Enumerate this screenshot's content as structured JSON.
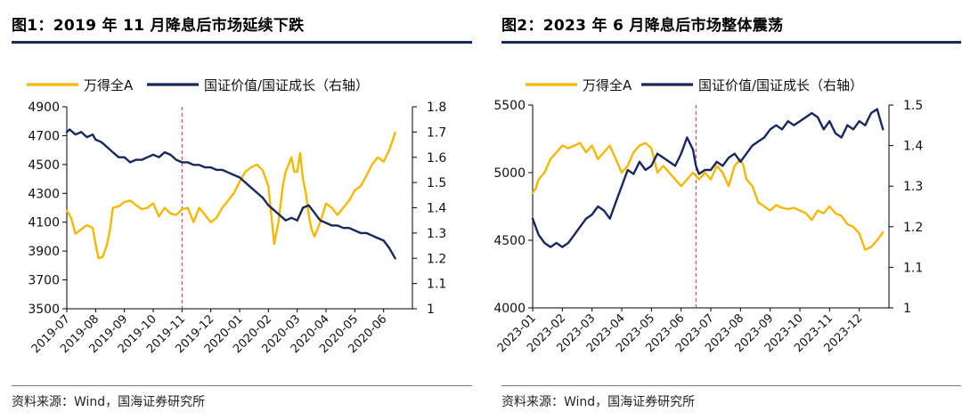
{
  "charts": [
    {
      "title": "图1：2019 年 11 月降息后市场延续下跌",
      "source": "资料来源：Wind，国海证券研究所",
      "cutoff_label": "2019-11",
      "chart_data": {
        "type": "line",
        "x_labels": [
          "2019-07",
          "2019-08",
          "2019-09",
          "2019-10",
          "2019-11",
          "2019-12",
          "2020-01",
          "2020-02",
          "2020-03",
          "2020-04",
          "2020-05",
          "2020-06"
        ],
        "legend_position": "top",
        "grid": false,
        "y_left": {
          "lim": [
            3500,
            4900
          ],
          "ticks": [
            3500,
            3700,
            3900,
            4100,
            4300,
            4500,
            4700,
            4900
          ]
        },
        "y_right": {
          "lim": [
            1,
            1.8
          ],
          "ticks": [
            "1",
            "1.1",
            "1.2",
            "1.3",
            "1.4",
            "1.5",
            "1.6",
            "1.7",
            "1.8"
          ]
        },
        "marker": {
          "x": 4,
          "style": "dashed",
          "color": "#e03030"
        },
        "series": [
          {
            "name": "万得全A",
            "axis": "left",
            "color": "#f5b800",
            "x": [
              0,
              0.15,
              0.3,
              0.5,
              0.7,
              0.9,
              1,
              1.1,
              1.25,
              1.4,
              1.5,
              1.6,
              1.8,
              2,
              2.2,
              2.4,
              2.6,
              2.8,
              3,
              3.2,
              3.4,
              3.6,
              3.8,
              4,
              4.2,
              4.4,
              4.6,
              4.8,
              5,
              5.2,
              5.4,
              5.6,
              5.8,
              6,
              6.2,
              6.4,
              6.6,
              6.8,
              7,
              7.1,
              7.2,
              7.35,
              7.5,
              7.6,
              7.7,
              7.8,
              7.9,
              8,
              8.1,
              8.2,
              8.3,
              8.4,
              8.5,
              8.6,
              8.8,
              9,
              9.2,
              9.4,
              9.6,
              9.8,
              10,
              10.2,
              10.4,
              10.6,
              10.8,
              11,
              11.2,
              11.4
            ],
            "y": [
              4180,
              4130,
              4020,
              4050,
              4080,
              4060,
              3950,
              3850,
              3860,
              3950,
              4050,
              4200,
              4210,
              4240,
              4250,
              4220,
              4190,
              4200,
              4230,
              4140,
              4200,
              4160,
              4150,
              4190,
              4200,
              4100,
              4200,
              4150,
              4100,
              4130,
              4200,
              4250,
              4300,
              4380,
              4450,
              4480,
              4500,
              4460,
              4350,
              4150,
              3950,
              4100,
              4350,
              4450,
              4500,
              4550,
              4450,
              4450,
              4580,
              4400,
              4300,
              4150,
              4050,
              4000,
              4100,
              4230,
              4200,
              4150,
              4200,
              4250,
              4320,
              4350,
              4420,
              4500,
              4550,
              4520,
              4600,
              4720
            ]
          },
          {
            "name": "国证价值/国证成长（右轴）",
            "axis": "right",
            "color": "#17295c",
            "x": [
              0,
              0.1,
              0.3,
              0.5,
              0.7,
              0.9,
              1,
              1.2,
              1.4,
              1.6,
              1.8,
              2,
              2.2,
              2.4,
              2.6,
              2.8,
              3,
              3.2,
              3.4,
              3.6,
              3.8,
              4,
              4.2,
              4.4,
              4.6,
              4.8,
              5,
              5.2,
              5.4,
              5.6,
              5.8,
              6,
              6.2,
              6.4,
              6.6,
              6.8,
              7,
              7.2,
              7.4,
              7.6,
              7.8,
              8,
              8.2,
              8.4,
              8.6,
              8.8,
              9,
              9.2,
              9.4,
              9.6,
              9.8,
              10,
              10.2,
              10.4,
              10.6,
              10.8,
              11,
              11.2,
              11.4
            ],
            "y": [
              1.7,
              1.71,
              1.69,
              1.7,
              1.68,
              1.69,
              1.67,
              1.66,
              1.64,
              1.62,
              1.6,
              1.6,
              1.58,
              1.59,
              1.59,
              1.6,
              1.61,
              1.6,
              1.62,
              1.61,
              1.59,
              1.58,
              1.58,
              1.57,
              1.57,
              1.56,
              1.56,
              1.55,
              1.55,
              1.54,
              1.53,
              1.52,
              1.5,
              1.48,
              1.46,
              1.44,
              1.41,
              1.39,
              1.37,
              1.35,
              1.36,
              1.35,
              1.4,
              1.41,
              1.38,
              1.35,
              1.34,
              1.33,
              1.33,
              1.32,
              1.32,
              1.31,
              1.3,
              1.3,
              1.29,
              1.28,
              1.27,
              1.24,
              1.2
            ]
          }
        ]
      }
    },
    {
      "title": "图2：2023 年 6 月降息后市场整体震荡",
      "source": "资料来源：Wind，国海证券研究所",
      "cutoff_label": "2023-06",
      "chart_data": {
        "type": "line",
        "x_labels": [
          "2023-01",
          "2023-02",
          "2023-03",
          "2023-04",
          "2023-05",
          "2023-06",
          "2023-07",
          "2023-08",
          "2023-09",
          "2023-10",
          "2023-11",
          "2023-12"
        ],
        "legend_position": "top",
        "grid": false,
        "y_left": {
          "lim": [
            4000,
            5500
          ],
          "ticks": [
            4000,
            4500,
            5000,
            5500
          ]
        },
        "y_right": {
          "lim": [
            1,
            1.5
          ],
          "ticks": [
            "1",
            "1.1",
            "1.2",
            "1.3",
            "1.4",
            "1.5"
          ]
        },
        "marker": {
          "x": 5.5,
          "style": "dashed",
          "color": "#e03030"
        },
        "series": [
          {
            "name": "万得全A",
            "axis": "left",
            "color": "#f5b800",
            "x": [
              0,
              0.1,
              0.2,
              0.4,
              0.6,
              0.8,
              1,
              1.2,
              1.4,
              1.6,
              1.8,
              2,
              2.2,
              2.4,
              2.6,
              2.8,
              3,
              3.2,
              3.4,
              3.6,
              3.8,
              4,
              4.2,
              4.4,
              4.6,
              4.8,
              5,
              5.2,
              5.4,
              5.6,
              5.8,
              6,
              6.2,
              6.4,
              6.6,
              6.8,
              7,
              7.1,
              7.2,
              7.4,
              7.6,
              7.8,
              8,
              8.2,
              8.4,
              8.6,
              8.8,
              9,
              9.2,
              9.4,
              9.6,
              9.8,
              10,
              10.2,
              10.4,
              10.6,
              10.8,
              11,
              11.2,
              11.4,
              11.6,
              11.8
            ],
            "y": [
              4850,
              4880,
              4950,
              5000,
              5100,
              5150,
              5200,
              5180,
              5200,
              5220,
              5150,
              5200,
              5100,
              5150,
              5200,
              5100,
              5000,
              5050,
              5150,
              5200,
              5220,
              5180,
              5000,
              5050,
              5000,
              4950,
              4900,
              4950,
              5000,
              4950,
              5000,
              4950,
              5050,
              5000,
              4900,
              5050,
              5100,
              5050,
              4950,
              4900,
              4780,
              4750,
              4720,
              4760,
              4740,
              4730,
              4740,
              4720,
              4700,
              4650,
              4720,
              4700,
              4750,
              4700,
              4680,
              4620,
              4600,
              4550,
              4430,
              4450,
              4500,
              4560
            ]
          },
          {
            "name": "国证价值/国证成长（右轴）",
            "axis": "right",
            "color": "#17295c",
            "x": [
              0,
              0.2,
              0.4,
              0.6,
              0.8,
              1,
              1.2,
              1.4,
              1.6,
              1.8,
              2,
              2.2,
              2.4,
              2.6,
              2.8,
              3,
              3.2,
              3.4,
              3.6,
              3.8,
              4,
              4.2,
              4.4,
              4.6,
              4.8,
              5,
              5.2,
              5.4,
              5.5,
              5.6,
              5.8,
              6,
              6.2,
              6.4,
              6.6,
              6.8,
              7,
              7.2,
              7.4,
              7.6,
              7.8,
              8,
              8.2,
              8.4,
              8.6,
              8.8,
              9,
              9.2,
              9.4,
              9.6,
              9.8,
              10,
              10.2,
              10.4,
              10.6,
              10.8,
              11,
              11.2,
              11.4,
              11.6,
              11.8
            ],
            "y": [
              1.22,
              1.18,
              1.16,
              1.15,
              1.16,
              1.15,
              1.16,
              1.18,
              1.2,
              1.22,
              1.23,
              1.25,
              1.24,
              1.22,
              1.26,
              1.3,
              1.34,
              1.33,
              1.36,
              1.34,
              1.35,
              1.38,
              1.37,
              1.36,
              1.35,
              1.38,
              1.42,
              1.39,
              1.35,
              1.33,
              1.34,
              1.34,
              1.36,
              1.35,
              1.37,
              1.38,
              1.36,
              1.38,
              1.4,
              1.41,
              1.42,
              1.44,
              1.45,
              1.44,
              1.46,
              1.45,
              1.46,
              1.47,
              1.48,
              1.47,
              1.44,
              1.46,
              1.43,
              1.42,
              1.45,
              1.44,
              1.46,
              1.45,
              1.48,
              1.49,
              1.44
            ]
          }
        ]
      }
    }
  ]
}
